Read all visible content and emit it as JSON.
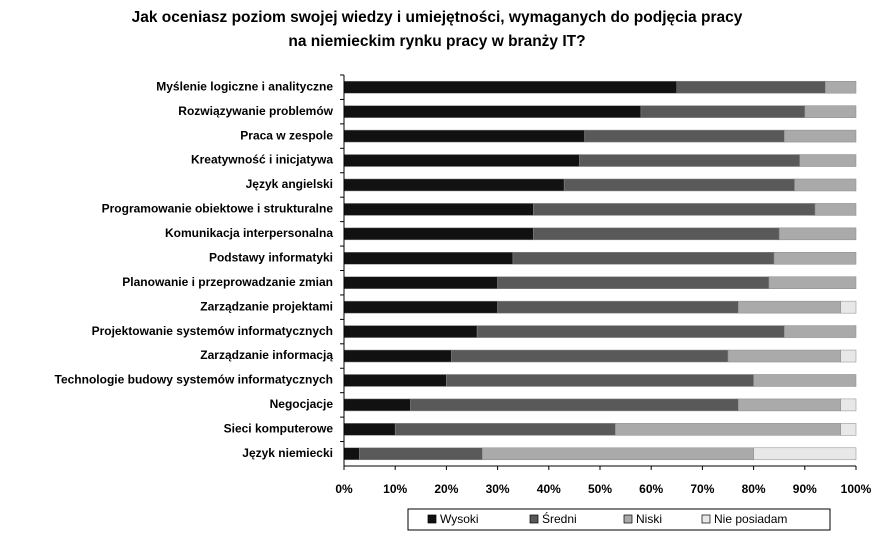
{
  "chart_data": {
    "type": "stacked_barh",
    "title_lines": [
      "Jak oceniasz poziom swojej wiedzy i umiejętności, wymaganych do podjęcia pracy",
      "na niemieckim rynku pracy w branży IT?"
    ],
    "categories": [
      "Myślenie logiczne i analityczne",
      "Rozwiązywanie problemów",
      "Praca w zespole",
      "Kreatywność i inicjatywa",
      "Język angielski",
      "Programowanie obiektowe i strukturalne",
      "Komunikacja interpersonalna",
      "Podstawy informatyki",
      "Planowanie i przeprowadzanie zmian",
      "Zarządzanie projektami",
      "Projektowanie systemów informatycznych",
      "Zarządzanie informacją",
      "Technologie budowy systemów informatycznych",
      "Negocjacje",
      "Sieci komputerowe",
      "Język niemiecki"
    ],
    "series": [
      {
        "name": "Wysoki",
        "color": "#111111",
        "values": [
          65,
          58,
          47,
          46,
          43,
          37,
          37,
          33,
          30,
          30,
          26,
          21,
          20,
          13,
          10,
          3
        ]
      },
      {
        "name": "Średni",
        "color": "#595959",
        "values": [
          29,
          32,
          39,
          43,
          45,
          55,
          48,
          51,
          53,
          47,
          60,
          54,
          60,
          64,
          43,
          24
        ]
      },
      {
        "name": "Niski",
        "color": "#aaaaaa",
        "values": [
          6,
          10,
          14,
          11,
          12,
          8,
          15,
          16,
          17,
          20,
          14,
          22,
          20,
          20,
          44,
          53
        ]
      },
      {
        "name": "Nie posiadam",
        "color": "#e8e8e8",
        "values": [
          0,
          0,
          0,
          0,
          0,
          0,
          0,
          0,
          0,
          3,
          0,
          3,
          0,
          3,
          3,
          20
        ]
      }
    ],
    "xlim": [
      0,
      100
    ],
    "xticks": [
      {
        "value": 0,
        "label": "0%"
      },
      {
        "value": 10,
        "label": "10%"
      },
      {
        "value": 20,
        "label": "20%"
      },
      {
        "value": 30,
        "label": "30%"
      },
      {
        "value": 40,
        "label": "40%"
      },
      {
        "value": 50,
        "label": "50%"
      },
      {
        "value": 60,
        "label": "60%"
      },
      {
        "value": 70,
        "label": "70%"
      },
      {
        "value": 80,
        "label": "80%"
      },
      {
        "value": 90,
        "label": "90%"
      },
      {
        "value": 100,
        "label": "100%"
      }
    ],
    "legend": "bottom"
  }
}
